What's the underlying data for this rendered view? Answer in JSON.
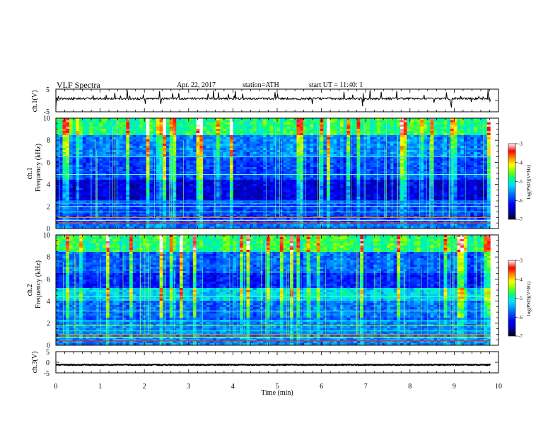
{
  "header": {
    "title": "VLF  Spectra",
    "date": "Apr. 22, 2017",
    "station": "station=ATH",
    "start": "start  UT  =    11:40: 1"
  },
  "chart_data": {
    "type": "heatmap",
    "x": {
      "label": "Time  (min)",
      "range": [
        0,
        10
      ],
      "ticks": [
        "0",
        "1",
        "2",
        "3",
        "4",
        "5",
        "6",
        "7",
        "8",
        "9",
        "10"
      ],
      "data_end_min": 9.82
    },
    "panels": [
      {
        "id": "ch1_waveform",
        "type": "line",
        "ylabel": "ch.1(V)",
        "yrange": [
          -5,
          5
        ],
        "ytick_labels": [
          "5",
          "-5"
        ],
        "baseline_v": 0.8,
        "color": "#000000"
      },
      {
        "id": "ch1_spectrogram",
        "type": "heatmap",
        "ylabel_top": "ch.1",
        "ylabel": "Frequency  (kHz)",
        "yrange": [
          0,
          10
        ],
        "ytick_labels": [
          "0",
          "2",
          "4",
          "6",
          "8",
          "10"
        ]
      },
      {
        "id": "ch2_spectrogram",
        "type": "heatmap",
        "ylabel_top": "ch.2",
        "ylabel": "Frequency  (kHz)",
        "yrange": [
          0,
          10
        ],
        "ytick_labels": [
          "0",
          "2",
          "4",
          "6",
          "8",
          "10"
        ]
      },
      {
        "id": "ch3_waveform",
        "type": "line",
        "ylabel": "ch.3(V)",
        "yrange": [
          -5,
          5
        ],
        "ytick_labels": [
          "5",
          "0",
          "-5"
        ],
        "baseline_v": -1.2,
        "color": "#000000"
      }
    ],
    "colorbar": {
      "label": "log(PSD)(V²/Hz)",
      "range": [
        -7,
        -3
      ],
      "tick_labels": [
        "-3",
        "-4",
        "-5",
        "-6",
        "-7"
      ],
      "colors": [
        "#000000",
        "#0000a0",
        "#0000ff",
        "#0080ff",
        "#00ffff",
        "#00ff80",
        "#80ff00",
        "#ffff00",
        "#ff8000",
        "#ff0000",
        "#ffffff"
      ]
    }
  }
}
